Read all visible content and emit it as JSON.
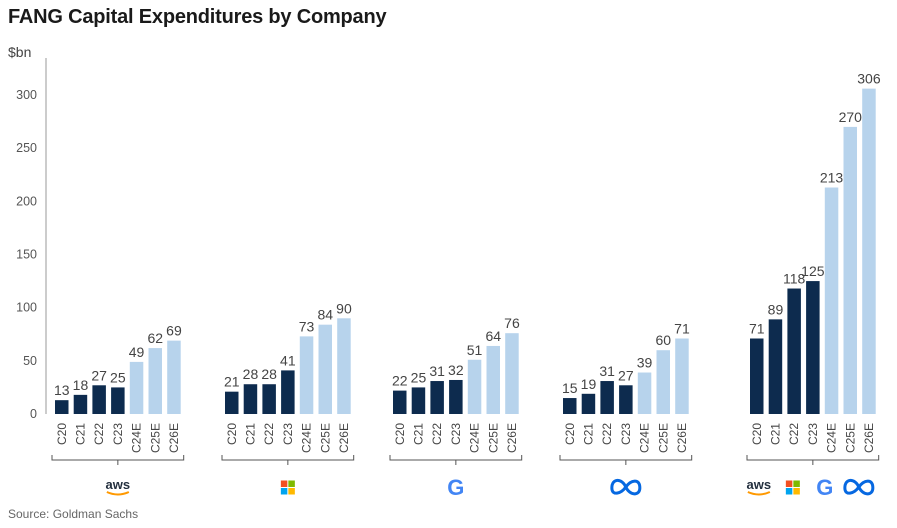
{
  "title": "FANG Capital Expenditures by Company",
  "ylabel": "$bn",
  "source": "Source: Goldman Sachs",
  "colors": {
    "actual": "#0d2b4e",
    "estimate": "#b7d3ec",
    "axis": "#999999"
  },
  "chart_data": {
    "type": "bar",
    "title": "FANG Capital Expenditures by Company",
    "ylabel": "$bn",
    "ylim": [
      0,
      300
    ],
    "yticks": [
      0,
      50,
      100,
      150,
      200,
      250,
      300
    ],
    "grid": false,
    "groups": [
      {
        "logo": "aws-icon",
        "categories": [
          "C20",
          "C21",
          "C22",
          "C23",
          "C24E",
          "C25E",
          "C26E"
        ],
        "values": [
          13,
          18,
          27,
          25,
          49,
          62,
          69
        ]
      },
      {
        "logo": "microsoft-icon",
        "categories": [
          "C20",
          "C21",
          "C22",
          "C23",
          "C24E",
          "C25E",
          "C26E"
        ],
        "values": [
          21,
          28,
          28,
          41,
          73,
          84,
          90
        ]
      },
      {
        "logo": "google-icon",
        "categories": [
          "C20",
          "C21",
          "C22",
          "C23",
          "C24E",
          "C25E",
          "C26E"
        ],
        "values": [
          22,
          25,
          31,
          32,
          51,
          64,
          76
        ]
      },
      {
        "logo": "meta-icon",
        "categories": [
          "C20",
          "C21",
          "C22",
          "C23",
          "C24E",
          "C25E",
          "C26E"
        ],
        "values": [
          15,
          19,
          31,
          27,
          39,
          60,
          71
        ]
      },
      {
        "logo": "combined-logos",
        "categories": [
          "C20",
          "C21",
          "C22",
          "C23",
          "C24E",
          "C25E",
          "C26E"
        ],
        "values": [
          71,
          89,
          118,
          125,
          213,
          270,
          306
        ]
      }
    ],
    "estimate_categories": [
      "C24E",
      "C25E",
      "C26E"
    ]
  },
  "logo_text": {
    "aws": "aws",
    "google": "G"
  }
}
